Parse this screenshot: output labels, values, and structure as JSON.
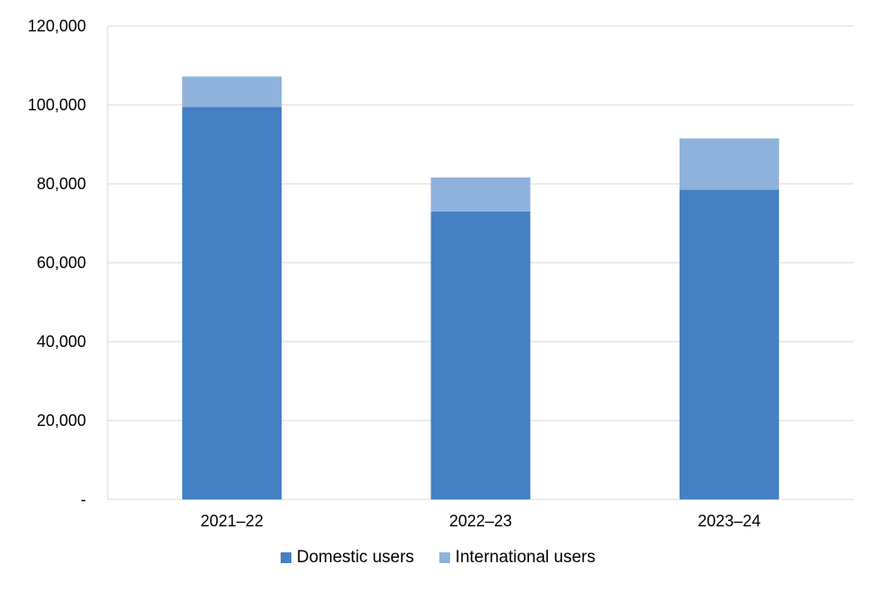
{
  "chart_data": {
    "type": "bar",
    "stacked": true,
    "categories": [
      "2021–22",
      "2022–23",
      "2023–24"
    ],
    "series": [
      {
        "name": "Domestic users",
        "values": [
          99500,
          73000,
          78500
        ],
        "color": "#4480C2"
      },
      {
        "name": "International users",
        "values": [
          7700,
          8600,
          13000
        ],
        "color": "#8EB2DB"
      }
    ],
    "title": "",
    "xlabel": "",
    "ylabel": "",
    "ylim": [
      0,
      120000
    ],
    "yticks": [
      {
        "value": 0,
        "label": "-"
      },
      {
        "value": 20000,
        "label": "20,000"
      },
      {
        "value": 40000,
        "label": "40,000"
      },
      {
        "value": 60000,
        "label": "60,000"
      },
      {
        "value": 80000,
        "label": "80,000"
      },
      {
        "value": 100000,
        "label": "100,000"
      },
      {
        "value": 120000,
        "label": "120,000"
      }
    ],
    "grid": true,
    "legend_position": "bottom"
  }
}
